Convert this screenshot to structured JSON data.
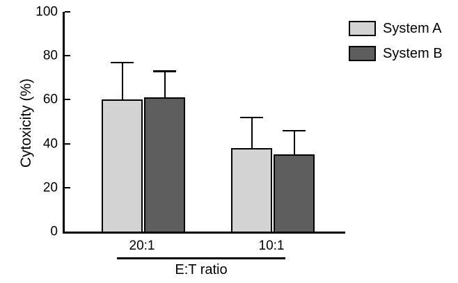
{
  "chart_data": {
    "type": "bar",
    "title": "",
    "ylabel": "Cytoxicity (%)",
    "xlabel": "E:T ratio",
    "categories": [
      "20:1",
      "10:1"
    ],
    "series": [
      {
        "name": "System A",
        "color": "#d3d3d3",
        "values": [
          60,
          38
        ],
        "error_up": [
          17,
          14
        ],
        "error_bar_tops": [
          77,
          52
        ]
      },
      {
        "name": "System B",
        "color": "#5e5e5e",
        "values": [
          61,
          35
        ],
        "error_up": [
          12,
          11
        ],
        "error_bar_tops": [
          73,
          46
        ]
      }
    ],
    "ylim": [
      0,
      100
    ],
    "yticks": [
      0,
      20,
      40,
      60,
      80,
      100
    ],
    "grid": false,
    "legend_position": "top-right",
    "bar_border_color": "#000000",
    "axis_color": "#000000"
  }
}
